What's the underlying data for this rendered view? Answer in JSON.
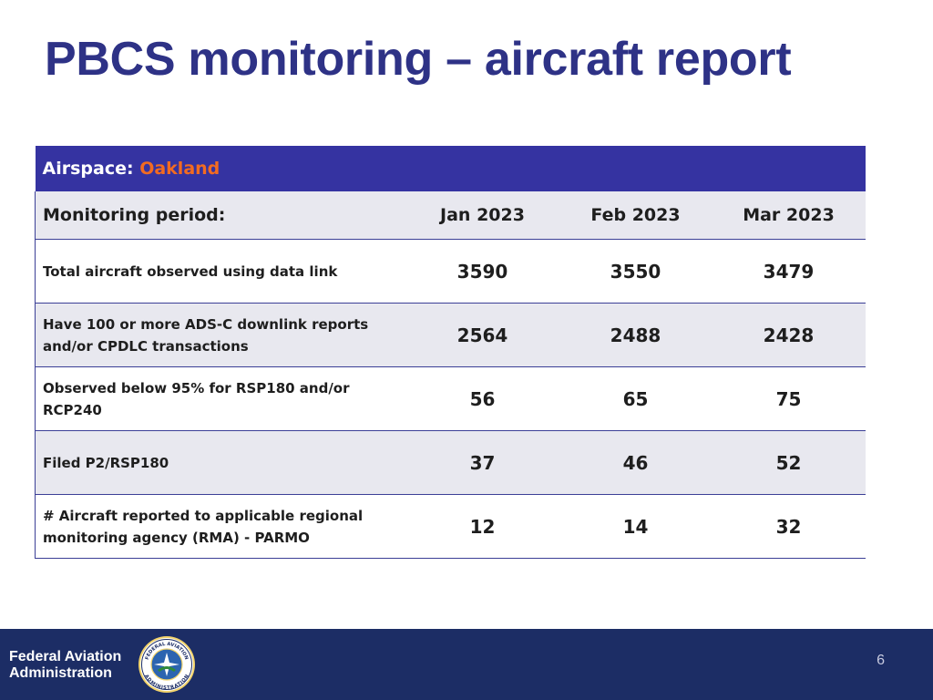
{
  "slide": {
    "title": "PBCS monitoring – aircraft report",
    "page_number": "6"
  },
  "table": {
    "airspace_label": "Airspace:",
    "airspace_value": "Oakland",
    "period_label": "Monitoring period:",
    "months": [
      "Jan 2023",
      "Feb 2023",
      "Mar 2023"
    ],
    "rows": [
      {
        "label": "Total aircraft observed using data link",
        "values": [
          "3590",
          "3550",
          "3479"
        ]
      },
      {
        "label": "Have 100 or more ADS-C downlink reports and/or CPDLC transactions",
        "values": [
          "2564",
          "2488",
          "2428"
        ]
      },
      {
        "label": "Observed below 95% for RSP180 and/or RCP240",
        "values": [
          "56",
          "65",
          "75"
        ]
      },
      {
        "label": "Filed P2/RSP180",
        "values": [
          "37",
          "46",
          "52"
        ]
      },
      {
        "label": "# Aircraft reported to applicable regional monitoring agency (RMA) - PARMO",
        "values": [
          "12",
          "14",
          "32"
        ]
      }
    ]
  },
  "footer": {
    "org_line1": "Federal Aviation",
    "org_line2": "Administration",
    "seal_icon": "faa-seal-icon",
    "seal_text_top": "FEDERAL AVIATION",
    "seal_text_bottom": "ADMINISTRATION"
  },
  "colors": {
    "title": "#2e3286",
    "header_band": "#3533a1",
    "accent_orange": "#f26b21",
    "footer_band": "#1c2d65"
  }
}
